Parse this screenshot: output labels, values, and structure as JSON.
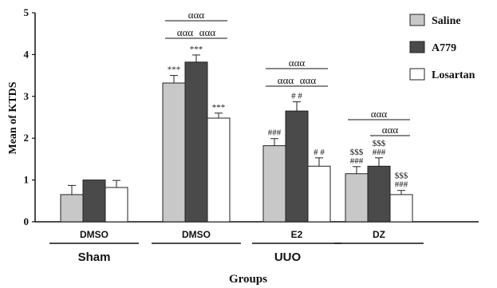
{
  "chart_data": {
    "type": "bar",
    "title": "",
    "xlabel": "Groups",
    "ylabel": "Mean of KTDS",
    "ylim": [
      0,
      5
    ],
    "yticks": [
      "0",
      "1",
      "2",
      "3",
      "4",
      "5"
    ],
    "categories": [
      "DMSO",
      "DMSO",
      "E2",
      "DZ"
    ],
    "super_groups": [
      {
        "label": "Sham",
        "categories": [
          0
        ]
      },
      {
        "label": "UUO",
        "categories": [
          1,
          2,
          3
        ]
      }
    ],
    "series": [
      {
        "name": "Saline",
        "color": "#c8c8c8",
        "values": [
          0.65,
          3.32,
          1.82,
          1.15
        ],
        "errors": [
          0.22,
          0.18,
          0.17,
          0.17
        ]
      },
      {
        "name": "A779",
        "color": "#4a4a4a",
        "values": [
          1.0,
          3.82,
          2.65,
          1.33
        ],
        "errors": [
          0.0,
          0.17,
          0.22,
          0.2
        ]
      },
      {
        "name": "Losartan",
        "color": "#ffffff",
        "values": [
          0.82,
          2.48,
          1.33,
          0.65
        ],
        "errors": [
          0.17,
          0.12,
          0.2,
          0.1
        ]
      }
    ],
    "bar_annotations": [
      {
        "category": 1,
        "series": 0,
        "lines": [
          "***"
        ]
      },
      {
        "category": 1,
        "series": 1,
        "lines": [
          "***"
        ]
      },
      {
        "category": 1,
        "series": 2,
        "lines": [
          "***"
        ]
      },
      {
        "category": 2,
        "series": 0,
        "lines": [
          "###"
        ]
      },
      {
        "category": 2,
        "series": 1,
        "lines": [
          "# #"
        ]
      },
      {
        "category": 2,
        "series": 2,
        "lines": [
          "# #"
        ]
      },
      {
        "category": 3,
        "series": 0,
        "lines": [
          "$$$",
          "###"
        ]
      },
      {
        "category": 3,
        "series": 1,
        "lines": [
          "$$$",
          "###"
        ]
      },
      {
        "category": 3,
        "series": 2,
        "lines": [
          "$$$",
          "###"
        ]
      }
    ],
    "sig_brackets": [
      {
        "category": 1,
        "from": 0,
        "to": 2,
        "label": "ααα",
        "level": 2
      },
      {
        "category": 1,
        "from": 0,
        "to": 1,
        "label": "ααα",
        "level": 1
      },
      {
        "category": 1,
        "from": 1,
        "to": 2,
        "label": "ααα",
        "level": 1
      },
      {
        "category": 2,
        "from": 0,
        "to": 2,
        "label": "ααα",
        "level": 2
      },
      {
        "category": 2,
        "from": 0,
        "to": 1,
        "label": "ααα",
        "level": 1
      },
      {
        "category": 2,
        "from": 1,
        "to": 2,
        "label": "ααα",
        "level": 1
      },
      {
        "category": 3,
        "from": 0,
        "to": 2,
        "label": "ααα",
        "level": 2
      },
      {
        "category": 3,
        "from": 1,
        "to": 2,
        "label": "ααα",
        "level": 1
      }
    ],
    "legend_position": "top-right",
    "grid": false
  }
}
